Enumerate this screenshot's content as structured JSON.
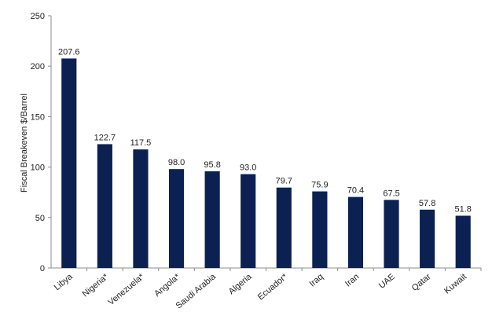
{
  "chart_data": {
    "type": "bar",
    "title": "",
    "xlabel": "",
    "ylabel": "Fiscal Breakeven $/Barrel",
    "ylim": [
      0,
      250
    ],
    "yticks": [
      0,
      50,
      100,
      150,
      200,
      250
    ],
    "grid": false,
    "legend": "none",
    "bar_color": "#0b2151",
    "categories": [
      "Libya",
      "Nigeria*",
      "Venezuela*",
      "Angola*",
      "Saudi Arabia",
      "Algeria",
      "Ecuador*",
      "Iraq",
      "Iran",
      "UAE",
      "Qatar",
      "Kuwait"
    ],
    "values": [
      207.6,
      122.7,
      117.5,
      98.0,
      95.8,
      93.0,
      79.7,
      75.9,
      70.4,
      67.5,
      57.8,
      51.8
    ],
    "data_labels": [
      "207.6",
      "122.7",
      "117.5",
      "98.0",
      "95.8",
      "93.0",
      "79.7",
      "75.9",
      "70.4",
      "67.5",
      "57.8",
      "51.8"
    ]
  }
}
